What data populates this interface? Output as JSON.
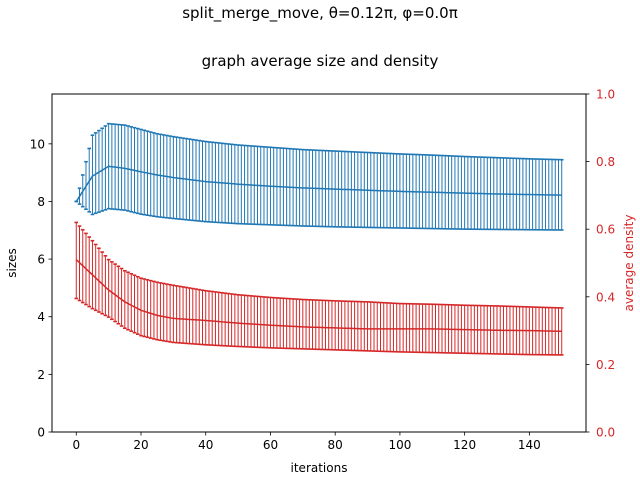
{
  "chart_data": {
    "type": "line",
    "title": "split_merge_move, θ=0.12π, φ=0.0π",
    "subtitle": "graph average size and density",
    "xlabel": "iterations",
    "ylabel": "sizes",
    "y2label": "average density",
    "xlim": [
      -7.5,
      157.5
    ],
    "ylim": [
      0,
      11.73
    ],
    "y2lim": [
      0,
      1.0
    ],
    "x_ticks": [
      0,
      20,
      40,
      60,
      80,
      100,
      120,
      140
    ],
    "y_ticks": [
      0,
      2,
      4,
      6,
      8,
      10
    ],
    "y2_ticks": [
      0.0,
      0.2,
      0.4,
      0.6,
      0.8,
      1.0
    ],
    "y2_tick_labels": [
      "0.0",
      "0.2",
      "0.4",
      "0.6",
      "0.8",
      "1.0"
    ],
    "colors": {
      "size": "#1f77b4",
      "density": "#d62728",
      "axes": "#000000"
    },
    "grid": false,
    "x": [
      0,
      5,
      10,
      15,
      20,
      25,
      30,
      40,
      50,
      60,
      70,
      80,
      90,
      100,
      110,
      120,
      130,
      140,
      150
    ],
    "series": [
      {
        "axis": "left",
        "color": "#1f77b4",
        "mean": [
          8.0,
          8.88,
          9.22,
          9.15,
          9.03,
          8.92,
          8.83,
          8.69,
          8.6,
          8.53,
          8.47,
          8.43,
          8.39,
          8.35,
          8.32,
          8.29,
          8.26,
          8.24,
          8.22
        ],
        "upper": [
          8.0,
          10.3,
          10.7,
          10.65,
          10.5,
          10.35,
          10.25,
          10.08,
          9.96,
          9.88,
          9.8,
          9.75,
          9.7,
          9.65,
          9.61,
          9.56,
          9.52,
          9.48,
          9.45
        ],
        "lower": [
          8.0,
          7.55,
          7.75,
          7.7,
          7.56,
          7.47,
          7.41,
          7.3,
          7.23,
          7.19,
          7.15,
          7.12,
          7.1,
          7.08,
          7.06,
          7.04,
          7.03,
          7.02,
          7.01
        ]
      },
      {
        "axis": "right",
        "color": "#d62728",
        "mean": [
          0.51,
          0.465,
          0.42,
          0.385,
          0.36,
          0.345,
          0.336,
          0.33,
          0.322,
          0.316,
          0.311,
          0.308,
          0.305,
          0.305,
          0.305,
          0.303,
          0.301,
          0.3,
          0.298
        ],
        "upper": [
          0.62,
          0.566,
          0.51,
          0.477,
          0.455,
          0.443,
          0.434,
          0.418,
          0.406,
          0.398,
          0.392,
          0.388,
          0.385,
          0.38,
          0.378,
          0.375,
          0.373,
          0.37,
          0.367
        ],
        "lower": [
          0.395,
          0.365,
          0.34,
          0.307,
          0.285,
          0.273,
          0.265,
          0.258,
          0.253,
          0.249,
          0.246,
          0.243,
          0.24,
          0.237,
          0.235,
          0.233,
          0.231,
          0.229,
          0.228
        ]
      }
    ]
  }
}
